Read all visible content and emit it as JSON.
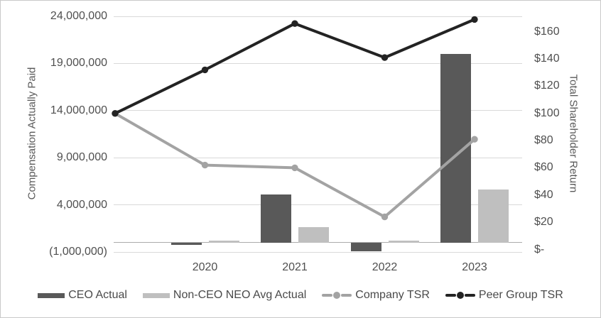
{
  "chart_data": {
    "type": "combo (bar + line, dual axis)",
    "title": "",
    "categories": [
      "2020",
      "2021",
      "2022",
      "2023"
    ],
    "bar_series": [
      {
        "name": "CEO Actual",
        "axis": "left",
        "color": "#595959",
        "values": [
          -250000,
          5100000,
          -950000,
          20000000
        ]
      },
      {
        "name": "Non-CEO NEO Avg Actual",
        "axis": "left",
        "color": "#bfbfbf",
        "values": [
          200000,
          1650000,
          200000,
          5600000
        ]
      }
    ],
    "line_series": [
      {
        "name": "Company TSR",
        "axis": "right",
        "color": "#a3a3a3",
        "values": [
          100,
          62,
          60,
          24,
          81
        ]
      },
      {
        "name": "Peer Group TSR",
        "axis": "right",
        "color": "#232323",
        "values": [
          100,
          132,
          166,
          141,
          169
        ]
      }
    ],
    "line_series_note": "Each TSR line has 5 points; the first ($100 index) sits at the plot's left edge, the remaining points align with the 2020-2023 category centers.",
    "left_axis": {
      "title": "Compensation Actually Paid",
      "min": -1000000,
      "max": 24000000,
      "ticks": [
        {
          "label": "24,000,000",
          "value": 24000000
        },
        {
          "label": "19,000,000",
          "value": 19000000
        },
        {
          "label": "14,000,000",
          "value": 14000000
        },
        {
          "label": "9,000,000",
          "value": 9000000
        },
        {
          "label": "4,000,000",
          "value": 4000000
        },
        {
          "label": "(1,000,000)",
          "value": -1000000
        }
      ]
    },
    "right_axis": {
      "title": "Total Shareholder Return",
      "min": 0,
      "ticks": [
        {
          "label": "$160",
          "value": 160
        },
        {
          "label": "$140",
          "value": 140
        },
        {
          "label": "$120",
          "value": 120
        },
        {
          "label": "$100",
          "value": 100
        },
        {
          "label": "$80",
          "value": 80
        },
        {
          "label": "$60",
          "value": 60
        },
        {
          "label": "$40",
          "value": 40
        },
        {
          "label": "$20",
          "value": 20
        },
        {
          "label": "$-",
          "value": 0
        }
      ]
    },
    "grid": true,
    "legend_position": "bottom"
  },
  "styles": {
    "gridline_color": "#d9d9d9",
    "axis_line_color": "#ababab",
    "text_color": "#4f4f4f",
    "frame_border_color": "#c9c9c9",
    "background": "#ffffff"
  }
}
